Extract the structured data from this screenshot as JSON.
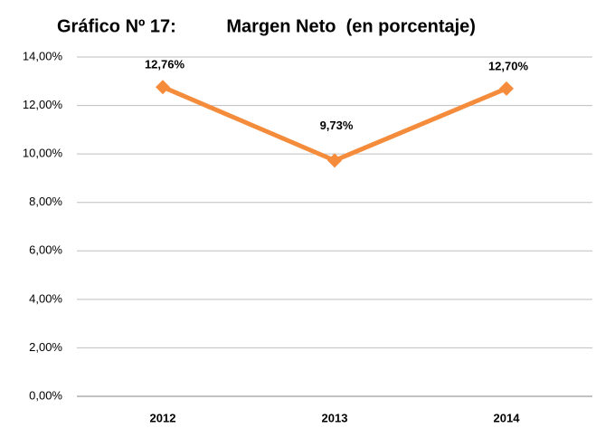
{
  "chart_data": {
    "type": "line",
    "title": "Gráfico Nº 17:          Margen Neto  (en porcentaje)",
    "categories": [
      "2012",
      "2013",
      "2014"
    ],
    "series": [
      {
        "name": null,
        "color": "#f58c3c",
        "values": [
          12.76,
          9.73,
          12.7
        ],
        "value_labels": [
          "12,76%",
          "9,73%",
          "12,70%"
        ]
      }
    ],
    "ylim": [
      0,
      14
    ],
    "yticks": [
      {
        "value": 0,
        "label": "0,00%"
      },
      {
        "value": 2,
        "label": "2,00%"
      },
      {
        "value": 4,
        "label": "4,00%"
      },
      {
        "value": 6,
        "label": "6,00%"
      },
      {
        "value": 8,
        "label": "8,00%"
      },
      {
        "value": 10,
        "label": "10,00%"
      },
      {
        "value": 12,
        "label": "12,00%"
      },
      {
        "value": 14,
        "label": "14,00%"
      }
    ],
    "grid": true
  }
}
